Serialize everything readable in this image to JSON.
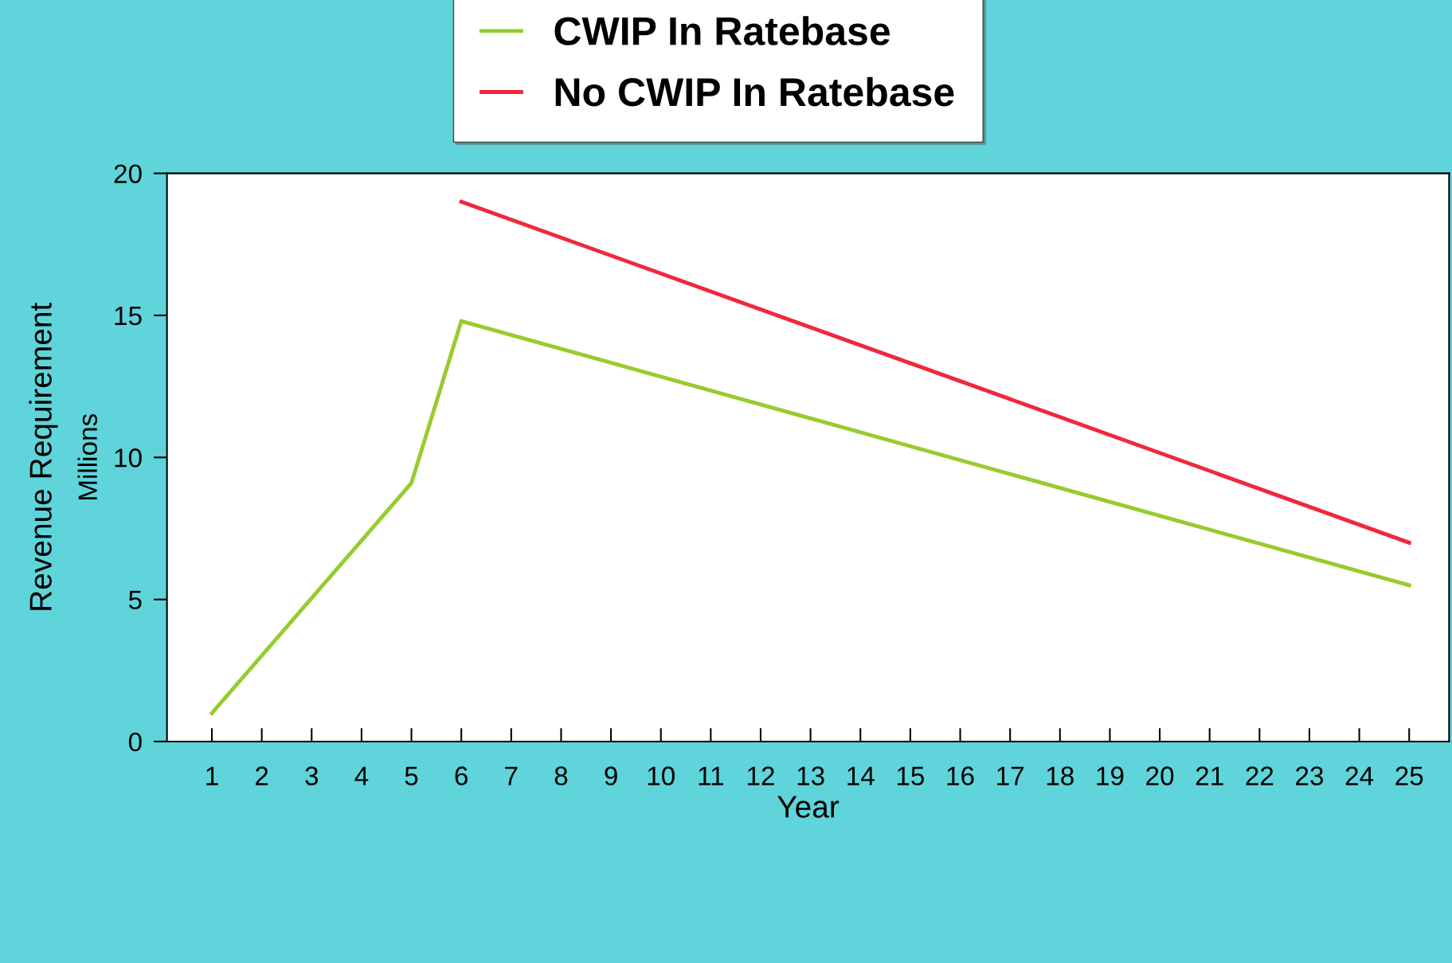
{
  "chart_data": {
    "type": "line",
    "xlabel": "Year",
    "ylabel": "Revenue Requirement",
    "annotations": [
      "Millions"
    ],
    "series": [
      {
        "name": "CWIP In Ratebase",
        "color": "#96cc2e",
        "x": [
          1,
          5,
          6,
          25
        ],
        "values": [
          1,
          9.1,
          14.8,
          5.5
        ]
      },
      {
        "name": "No CWIP In Ratebase",
        "color": "#f0283c",
        "x": [
          6,
          25
        ],
        "values": [
          19,
          7
        ]
      }
    ],
    "xlim": [
      0.1,
      25.8
    ],
    "xticks": [
      1,
      2,
      3,
      4,
      5,
      6,
      7,
      8,
      9,
      10,
      11,
      12,
      13,
      14,
      15,
      16,
      17,
      18,
      19,
      20,
      21,
      22,
      23,
      24,
      25
    ],
    "ylim": [
      0,
      20
    ],
    "yticks": [
      0,
      5,
      10,
      15,
      20
    ],
    "grid": false,
    "legend": "top",
    "marker": "none",
    "line_style": "solid"
  }
}
